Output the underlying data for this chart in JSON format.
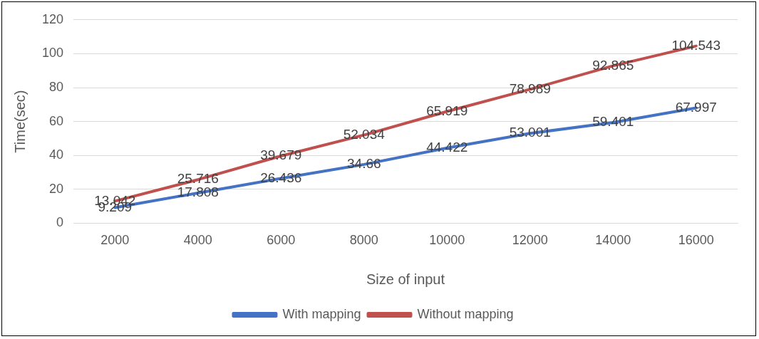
{
  "chart_data": {
    "type": "line",
    "categories": [
      "2000",
      "4000",
      "6000",
      "8000",
      "10000",
      "12000",
      "14000",
      "16000"
    ],
    "series": [
      {
        "name": "With mapping",
        "color": "#4472c4",
        "values": [
          9.209,
          17.808,
          26.436,
          34.66,
          44.422,
          53.001,
          59.401,
          67.997
        ]
      },
      {
        "name": "Without mapping",
        "color": "#c0504d",
        "values": [
          13.042,
          25.716,
          39.679,
          52.034,
          65.919,
          78.989,
          92.865,
          104.543
        ]
      }
    ],
    "xlabel": "Size of input",
    "ylabel": "Time(sec)",
    "ylim": [
      0,
      120
    ],
    "yticks": [
      0,
      20,
      40,
      60,
      80,
      100,
      120
    ],
    "grid": "y",
    "legend": "bottom",
    "marker": "none",
    "line_style": "solid",
    "data_labels": true
  }
}
